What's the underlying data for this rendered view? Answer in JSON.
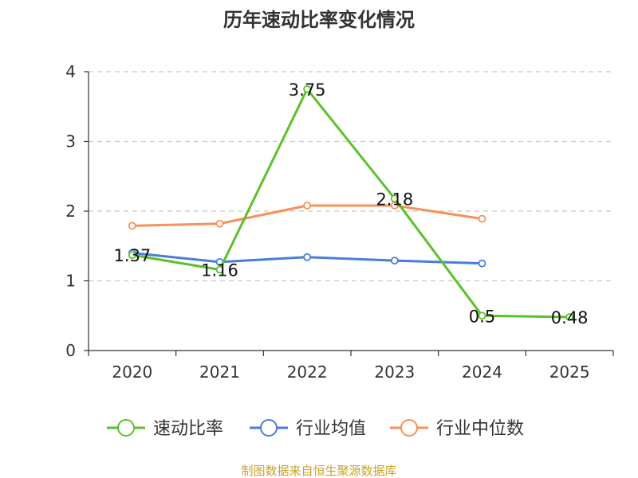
{
  "chart_data": {
    "type": "line",
    "title": "历年速动比率变化情况",
    "categories": [
      "2020",
      "2021",
      "2022",
      "2023",
      "2024",
      "2025"
    ],
    "ylim": [
      0,
      4
    ],
    "y_ticks": [
      "0",
      "1",
      "2",
      "3",
      "4"
    ],
    "grid": true,
    "legend_position": "bottom",
    "series": [
      {
        "name": "速动比率",
        "color": "#5CC02B",
        "values": [
          1.37,
          1.16,
          3.75,
          2.18,
          0.5,
          0.48
        ],
        "labels": [
          "1.37",
          "1.16",
          "3.75",
          "2.18",
          "0.5",
          "0.48"
        ]
      },
      {
        "name": "行业均值",
        "color": "#4A7DDB",
        "values": [
          1.4,
          1.27,
          1.34,
          1.29,
          1.25,
          null
        ]
      },
      {
        "name": "行业中位数",
        "color": "#F7905A",
        "values": [
          1.79,
          1.82,
          2.08,
          2.08,
          1.89,
          null
        ]
      }
    ]
  },
  "source_text": "制图数据来自恒生聚源数据库",
  "source_color": "#C9A227"
}
